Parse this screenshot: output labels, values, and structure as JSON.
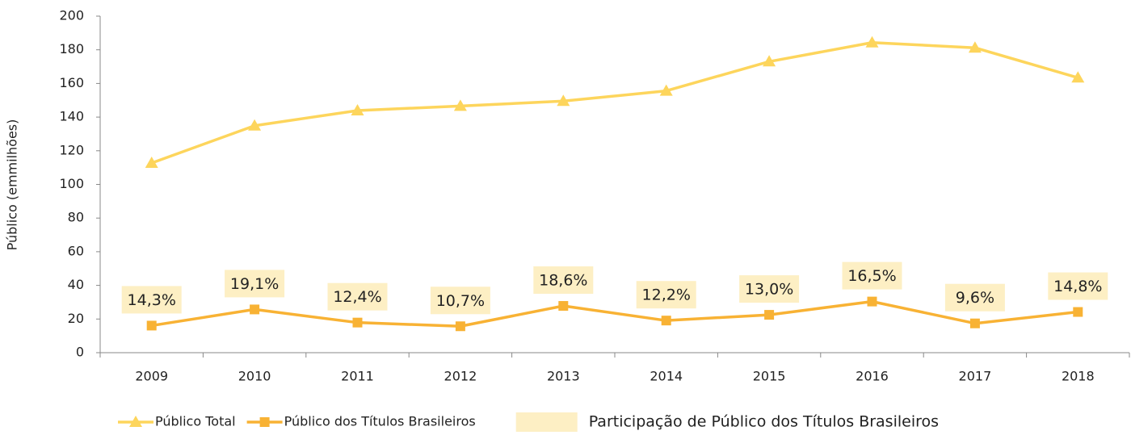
{
  "chart_data": {
    "type": "line",
    "ylabel": "Público (emmilhões)",
    "categories": [
      "2009",
      "2010",
      "2011",
      "2012",
      "2013",
      "2014",
      "2015",
      "2016",
      "2017",
      "2018"
    ],
    "series": [
      {
        "name": "Público Total",
        "color": "#fdd55c",
        "marker": "triangle",
        "values": [
          112.7,
          134.9,
          143.9,
          146.6,
          149.5,
          155.6,
          173.0,
          184.3,
          181.2,
          163.4
        ]
      },
      {
        "name": "Público dos Títulos Brasileiros",
        "color": "#f8b234",
        "marker": "square",
        "values": [
          16.1,
          25.7,
          17.9,
          15.7,
          27.8,
          19.1,
          22.5,
          30.4,
          17.4,
          24.2
        ]
      },
      {
        "name": "Participação de Público dos Títulos Brasileiros",
        "color": "#fdefc4",
        "type": "label",
        "values": [
          14.3,
          19.1,
          12.4,
          10.7,
          18.6,
          12.2,
          13.0,
          16.5,
          9.6,
          14.8
        ],
        "value_labels": [
          "14,3%",
          "19,1%",
          "12,4%",
          "10,7%",
          "18,6%",
          "12,2%",
          "13,0%",
          "16,5%",
          "9,6%",
          "14,8%"
        ]
      }
    ],
    "ylim": [
      0,
      200
    ],
    "yticks": [
      0,
      20,
      40,
      60,
      80,
      100,
      120,
      140,
      160,
      180,
      200
    ]
  }
}
